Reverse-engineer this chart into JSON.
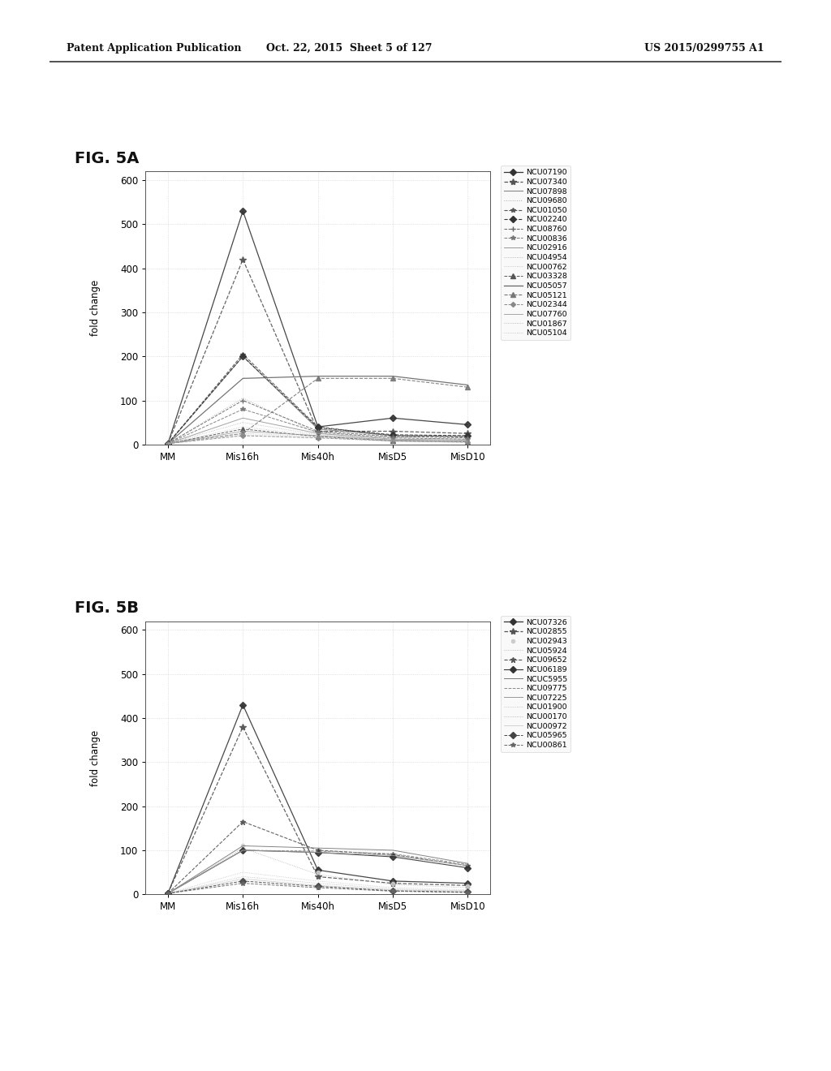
{
  "fig_a_label": "FIG. 5A",
  "fig_b_label": "FIG. 5B",
  "x_labels": [
    "MM",
    "Mis16h",
    "Mis40h",
    "MisD5",
    "MisD10"
  ],
  "ylabel": "fold change",
  "ylim": [
    0,
    620
  ],
  "yticks": [
    0,
    100,
    200,
    300,
    400,
    500,
    600
  ],
  "page_bg": "#ffffff",
  "plot_bg": "#ffffff",
  "header_left": "Patent Application Publication",
  "header_mid": "Oct. 22, 2015  Sheet 5 of 127",
  "header_right": "US 2015/0299755 A1",
  "series_a": [
    {
      "label": "NCU07190",
      "data": [
        2,
        530,
        40,
        60,
        45
      ],
      "color": "#333333",
      "marker": "D",
      "linestyle": "-",
      "markersize": 4,
      "lw": 0.9
    },
    {
      "label": "NCU07340",
      "data": [
        2,
        420,
        30,
        30,
        25
      ],
      "color": "#555555",
      "marker": "*",
      "linestyle": "--",
      "markersize": 6,
      "lw": 0.9
    },
    {
      "label": "NCU07898",
      "data": [
        2,
        200,
        35,
        20,
        18
      ],
      "color": "#888888",
      "marker": null,
      "linestyle": "-",
      "markersize": 0,
      "lw": 0.8
    },
    {
      "label": "NCU09680",
      "data": [
        2,
        105,
        25,
        15,
        12
      ],
      "color": "#aaaaaa",
      "marker": null,
      "linestyle": ":",
      "markersize": 0,
      "lw": 0.7
    },
    {
      "label": "NCU01050",
      "data": [
        2,
        205,
        40,
        20,
        18
      ],
      "color": "#555555",
      "marker": "*",
      "linestyle": "--",
      "markersize": 4,
      "lw": 0.8
    },
    {
      "label": "NCU02240",
      "data": [
        2,
        200,
        38,
        22,
        20
      ],
      "color": "#333333",
      "marker": "D",
      "linestyle": "--",
      "markersize": 4,
      "lw": 0.8
    },
    {
      "label": "NCU08760",
      "data": [
        2,
        100,
        30,
        18,
        15
      ],
      "color": "#666666",
      "marker": "+",
      "linestyle": "--",
      "markersize": 4,
      "lw": 0.7
    },
    {
      "label": "NCU00836",
      "data": [
        2,
        80,
        28,
        15,
        12
      ],
      "color": "#777777",
      "marker": "*",
      "linestyle": "--",
      "markersize": 4,
      "lw": 0.7
    },
    {
      "label": "NCU02916",
      "data": [
        2,
        60,
        25,
        12,
        10
      ],
      "color": "#999999",
      "marker": null,
      "linestyle": "-",
      "markersize": 0,
      "lw": 0.7
    },
    {
      "label": "NCU04954",
      "data": [
        2,
        50,
        22,
        10,
        8
      ],
      "color": "#aaaaaa",
      "marker": null,
      "linestyle": ":",
      "markersize": 0,
      "lw": 0.6
    },
    {
      "label": "NCU00762",
      "data": [
        2,
        40,
        20,
        10,
        8
      ],
      "color": "#bbbbbb",
      "marker": null,
      "linestyle": ":",
      "markersize": 0,
      "lw": 0.6
    },
    {
      "label": "NCU03328",
      "data": [
        2,
        35,
        18,
        8,
        6
      ],
      "color": "#555555",
      "marker": "^",
      "linestyle": "--",
      "markersize": 4,
      "lw": 0.7
    },
    {
      "label": "NCU05057",
      "data": [
        2,
        150,
        155,
        155,
        135
      ],
      "color": "#666666",
      "marker": null,
      "linestyle": "-",
      "markersize": 0,
      "lw": 0.9
    },
    {
      "label": "NCU05121",
      "data": [
        2,
        25,
        150,
        150,
        130
      ],
      "color": "#777777",
      "marker": "^",
      "linestyle": "--",
      "markersize": 4,
      "lw": 0.8
    },
    {
      "label": "NCU02344",
      "data": [
        2,
        20,
        15,
        8,
        5
      ],
      "color": "#888888",
      "marker": "D",
      "linestyle": "--",
      "markersize": 3,
      "lw": 0.7
    },
    {
      "label": "NCU07760",
      "data": [
        2,
        30,
        20,
        10,
        8
      ],
      "color": "#999999",
      "marker": null,
      "linestyle": "-",
      "markersize": 0,
      "lw": 0.6
    },
    {
      "label": "NCU01867",
      "data": [
        2,
        25,
        18,
        8,
        6
      ],
      "color": "#aaaaaa",
      "marker": null,
      "linestyle": ":",
      "markersize": 0,
      "lw": 0.6
    },
    {
      "label": "NCU05104",
      "data": [
        2,
        22,
        15,
        7,
        5
      ],
      "color": "#bbbbbb",
      "marker": null,
      "linestyle": ":",
      "markersize": 0,
      "lw": 0.6
    }
  ],
  "series_b": [
    {
      "label": "NCU07326",
      "data": [
        2,
        430,
        55,
        30,
        25
      ],
      "color": "#333333",
      "marker": "D",
      "linestyle": "-",
      "markersize": 4,
      "lw": 0.9
    },
    {
      "label": "NCU02855",
      "data": [
        2,
        380,
        40,
        25,
        20
      ],
      "color": "#555555",
      "marker": "*",
      "linestyle": "--",
      "markersize": 6,
      "lw": 0.9
    },
    {
      "label": "NCU02943",
      "data": [
        2,
        110,
        50,
        25,
        18
      ],
      "color": "#cccccc",
      "marker": "o",
      "linestyle": "None",
      "markersize": 3,
      "lw": 0.7
    },
    {
      "label": "NCU05924",
      "data": [
        2,
        105,
        45,
        22,
        15
      ],
      "color": "#aaaaaa",
      "marker": null,
      "linestyle": ":",
      "markersize": 0,
      "lw": 0.6
    },
    {
      "label": "NCU09652",
      "data": [
        2,
        165,
        100,
        90,
        65
      ],
      "color": "#555555",
      "marker": "*",
      "linestyle": "--",
      "markersize": 5,
      "lw": 0.8
    },
    {
      "label": "NCU06189",
      "data": [
        2,
        100,
        95,
        85,
        60
      ],
      "color": "#333333",
      "marker": "D",
      "linestyle": "-",
      "markersize": 4,
      "lw": 0.8
    },
    {
      "label": "NCUC5955",
      "data": [
        2,
        110,
        105,
        100,
        70
      ],
      "color": "#777777",
      "marker": null,
      "linestyle": "-",
      "markersize": 0,
      "lw": 0.7
    },
    {
      "label": "NCU09775",
      "data": [
        2,
        100,
        98,
        92,
        68
      ],
      "color": "#888888",
      "marker": null,
      "linestyle": "--",
      "markersize": 0,
      "lw": 0.7
    },
    {
      "label": "NCU07225",
      "data": [
        2,
        100,
        95,
        88,
        65
      ],
      "color": "#999999",
      "marker": null,
      "linestyle": "-",
      "markersize": 0,
      "lw": 0.7
    },
    {
      "label": "NCU01900",
      "data": [
        2,
        50,
        30,
        15,
        10
      ],
      "color": "#bbbbbb",
      "marker": null,
      "linestyle": ":",
      "markersize": 0,
      "lw": 0.6
    },
    {
      "label": "NCU00170",
      "data": [
        2,
        40,
        25,
        12,
        8
      ],
      "color": "#aaaaaa",
      "marker": null,
      "linestyle": ":",
      "markersize": 0,
      "lw": 0.6
    },
    {
      "label": "NCU00972",
      "data": [
        2,
        35,
        20,
        10,
        7
      ],
      "color": "#cccccc",
      "marker": null,
      "linestyle": "-",
      "markersize": 0,
      "lw": 0.6
    },
    {
      "label": "NCU05965",
      "data": [
        2,
        30,
        18,
        8,
        5
      ],
      "color": "#444444",
      "marker": "D",
      "linestyle": "--",
      "markersize": 4,
      "lw": 0.7
    },
    {
      "label": "NCU00861",
      "data": [
        2,
        25,
        15,
        7,
        4
      ],
      "color": "#666666",
      "marker": "*",
      "linestyle": "--",
      "markersize": 4,
      "lw": 0.7
    }
  ]
}
